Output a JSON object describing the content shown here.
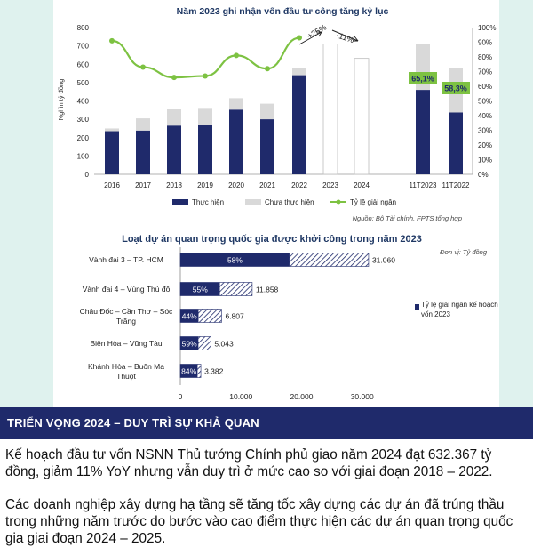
{
  "chart_data": [
    {
      "type": "bar",
      "title": "Năm 2023 ghi nhận vốn đầu tư công tăng kỷ lục",
      "ylabel": "Nghìn tỷ đồng",
      "y_ticks": [
        "0",
        "100",
        "200",
        "300",
        "400",
        "500",
        "600",
        "700",
        "800"
      ],
      "y2_ticks": [
        "0%",
        "10%",
        "20%",
        "30%",
        "40%",
        "50%",
        "60%",
        "70%",
        "80%",
        "90%",
        "100%"
      ],
      "ylim": [
        0,
        800
      ],
      "y2lim": [
        0,
        100
      ],
      "categories": [
        "2016",
        "2017",
        "2018",
        "2019",
        "2020",
        "2021",
        "2022",
        "2023",
        "2024",
        "11T2023",
        "11T2022"
      ],
      "series": [
        {
          "name": "Thực hiện",
          "type": "bar",
          "color": "#1f2a6b",
          "values": [
            235,
            238,
            265,
            270,
            352,
            300,
            540,
            null,
            null,
            460,
            337
          ]
        },
        {
          "name": "Chưa thực hiện",
          "type": "stacked-bar",
          "color": "#d9d9d9",
          "values": [
            15,
            67,
            90,
            92,
            63,
            85,
            40,
            710,
            632,
            248,
            243
          ]
        },
        {
          "name": "Tỷ lệ giải ngân",
          "type": "line",
          "axis": "right",
          "color": "#7dc242",
          "values": [
            91,
            73,
            66,
            67,
            81,
            72,
            93,
            null,
            null,
            65.1,
            58.3
          ]
        }
      ],
      "annotations": [
        "+25%",
        "-11%",
        "65,1%",
        "58,3%"
      ],
      "legend": [
        "Thực hiện",
        "Chưa thực hiện",
        "Tỷ lệ giải ngân"
      ],
      "legend_position": "bottom",
      "source": "Nguồn: Bộ Tài chính, FPTS tổng hợp"
    },
    {
      "type": "bar",
      "orientation": "horizontal",
      "title": "Loạt dự án quan trọng quốc gia được khởi công trong năm 2023",
      "unit_note": "Đơn vị: Tỷ đồng",
      "categories": [
        "Vành đai 3 – TP. HCM",
        "Vành đai 4 – Vùng Thủ đô",
        "Châu Đốc – Cần Thơ – Sóc Trăng",
        "Biên Hòa – Vũng Tàu",
        "Khánh Hòa – Buôn Ma Thuột"
      ],
      "values": [
        31060,
        11858,
        6807,
        5043,
        3382
      ],
      "value_labels": [
        "31.060",
        "11.858",
        "6.807",
        "5.043",
        "3.382"
      ],
      "disbursement_rate": [
        58,
        55,
        44,
        59,
        84
      ],
      "rate_labels": [
        "58%",
        "55%",
        "44%",
        "59%",
        "84%"
      ],
      "xlim": [
        0,
        34000
      ],
      "x_ticks": [
        0,
        10000,
        20000,
        30000
      ],
      "x_tick_labels": [
        "0",
        "10.000",
        "20.000",
        "30.000"
      ],
      "legend": [
        "Tỷ lệ giải ngân kế hoạch vốn 2023"
      ],
      "colors": {
        "filled": "#1f2a6b",
        "hatched": "#1f2a6b"
      }
    }
  ],
  "section": {
    "heading": "TRIỂN VỌNG 2024 – DUY TRÌ SỰ KHẢ QUAN",
    "paragraph1": "Kế hoạch đầu tư vốn NSNN Thủ tướng Chính phủ giao năm 2024 đạt 632.367 tỷ đồng, giảm 11% YoY nhưng vẫn duy trì ở mức cao so với giai đoạn 2018 – 2022.",
    "paragraph2": "Các doanh nghiệp xây dựng hạ tầng sẽ tăng tốc xây dựng các dự án đã trúng thầu trong những năm trước do bước vào cao điểm thực hiện các dự án quan trọng quốc gia giai đoạn 2024 – 2025."
  }
}
